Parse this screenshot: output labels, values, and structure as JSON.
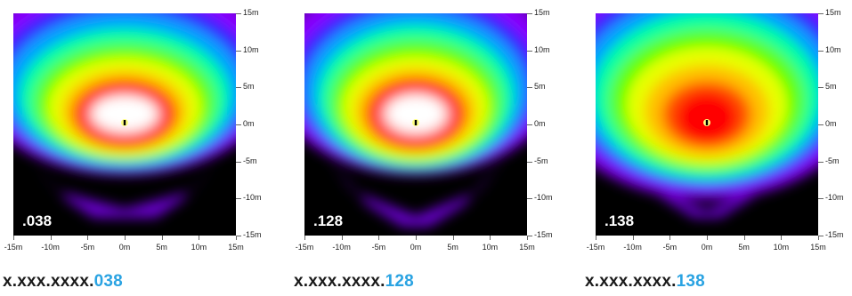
{
  "chart_data": [
    {
      "type": "heatmap",
      "inset_label": ".038",
      "caption_prefix": "x.xxx.xxxx.",
      "caption_suffix": "038",
      "xlim": [
        -15,
        15
      ],
      "ylim": [
        -15,
        15
      ],
      "x_ticks": [
        "-15m",
        "-10m",
        "-5m",
        "0m",
        "5m",
        "10m",
        "15m"
      ],
      "y_ticks": [
        "15m",
        "10m",
        "5m",
        "0m",
        "-5m",
        "-10m",
        "-15m"
      ],
      "source_marker": {
        "x": 0,
        "y": 0
      },
      "pattern": "wide lobe, hot core centered near y=1m"
    },
    {
      "type": "heatmap",
      "inset_label": ".128",
      "caption_prefix": "x.xxx.xxxx.",
      "caption_suffix": "128",
      "xlim": [
        -15,
        15
      ],
      "ylim": [
        -15,
        15
      ],
      "x_ticks": [
        "-15m",
        "-10m",
        "-5m",
        "0m",
        "5m",
        "10m",
        "15m"
      ],
      "y_ticks": [
        "15m",
        "10m",
        "5m",
        "0m",
        "-5m",
        "-10m",
        "-15m"
      ],
      "source_marker": {
        "x": 0,
        "y": 0
      },
      "pattern": "wide lobe with rear shoulders, hot core near y=1m"
    },
    {
      "type": "heatmap",
      "inset_label": ".138",
      "caption_prefix": "x.xxx.xxxx.",
      "caption_suffix": "138",
      "xlim": [
        -15,
        15
      ],
      "ylim": [
        -15,
        15
      ],
      "x_ticks": [
        "-15m",
        "-10m",
        "-5m",
        "0m",
        "5m",
        "10m",
        "15m"
      ],
      "y_ticks": [
        "15m",
        "10m",
        "5m",
        "0m",
        "-5m",
        "-10m",
        "-15m"
      ],
      "source_marker": {
        "x": 0,
        "y": 0
      },
      "pattern": "broad cardioid, compact core without white center"
    }
  ],
  "colors": {
    "caption_suffix": "#2aa3e2",
    "background": "#000000",
    "scale": [
      "#000000",
      "#7a00ff",
      "#0000ff",
      "#00c8ff",
      "#00ff00",
      "#ffff00",
      "#ffa000",
      "#ff0000",
      "#ffffff"
    ]
  }
}
